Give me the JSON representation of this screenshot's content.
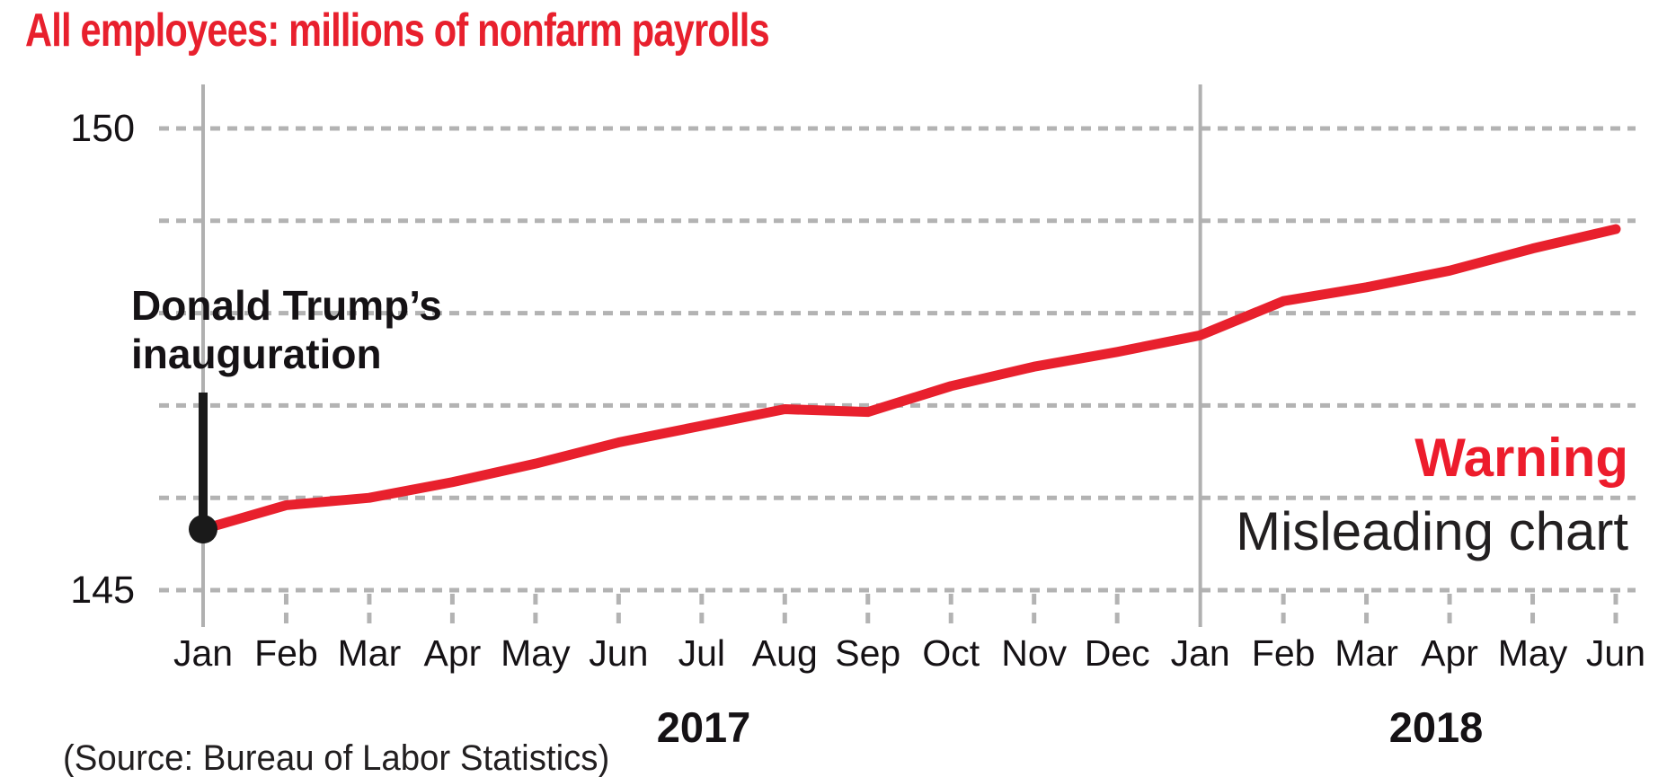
{
  "title": "All employees: millions of nonfarm payrolls",
  "annotations": {
    "inauguration_line1": "Donald Trump’s",
    "inauguration_line2": "inauguration",
    "warning": "Warning",
    "warning_sub": "Misleading chart"
  },
  "source": "(Source: Bureau of Labor Statistics)",
  "colors": {
    "accent_red": "#e8202d",
    "warning_red": "#ed1c2c",
    "text_black": "#151215",
    "grid_gray": "#b3b3b3",
    "axis_line_gray": "#b0b0b0",
    "marker_black": "#1a1a1a"
  },
  "chart_data": {
    "type": "line",
    "title": "All employees: millions of nonfarm payrolls",
    "categories": [
      "Jan 2017",
      "Feb 2017",
      "Mar 2017",
      "Apr 2017",
      "May 2017",
      "Jun 2017",
      "Jul 2017",
      "Aug 2017",
      "Sep 2017",
      "Oct 2017",
      "Nov 2017",
      "Dec 2017",
      "Jan 2018",
      "Feb 2018",
      "Mar 2018",
      "Apr 2018",
      "May 2018",
      "Jun 2018"
    ],
    "month_labels": [
      "Jan",
      "Feb",
      "Mar",
      "Apr",
      "May",
      "Jun",
      "Jul",
      "Aug",
      "Sep",
      "Oct",
      "Nov",
      "Dec",
      "Jan",
      "Feb",
      "Mar",
      "Apr",
      "May",
      "Jun"
    ],
    "year_labels": [
      "2017",
      "2018"
    ],
    "series": [
      {
        "name": "All employees: millions of nonfarm payrolls",
        "color": "#e8202d",
        "values": [
          145.66,
          145.92,
          146.0,
          146.17,
          146.37,
          146.6,
          146.78,
          146.96,
          146.93,
          147.21,
          147.42,
          147.58,
          147.76,
          148.13,
          148.28,
          148.46,
          148.7,
          148.91
        ]
      }
    ],
    "ylim": [
      144.55,
      150.45
    ],
    "gridline_values": [
      145,
      146,
      147,
      148,
      149,
      150
    ],
    "ytick_labels": [
      "150",
      "145"
    ],
    "xlabel": "",
    "ylabel": "",
    "grid": "dashed horizontal, labeled only at 145 and 150",
    "legend_position": "none",
    "annotated_point": {
      "category": "Jan 2017",
      "value": 145.66,
      "label": "Donald Trump’s inauguration"
    }
  }
}
